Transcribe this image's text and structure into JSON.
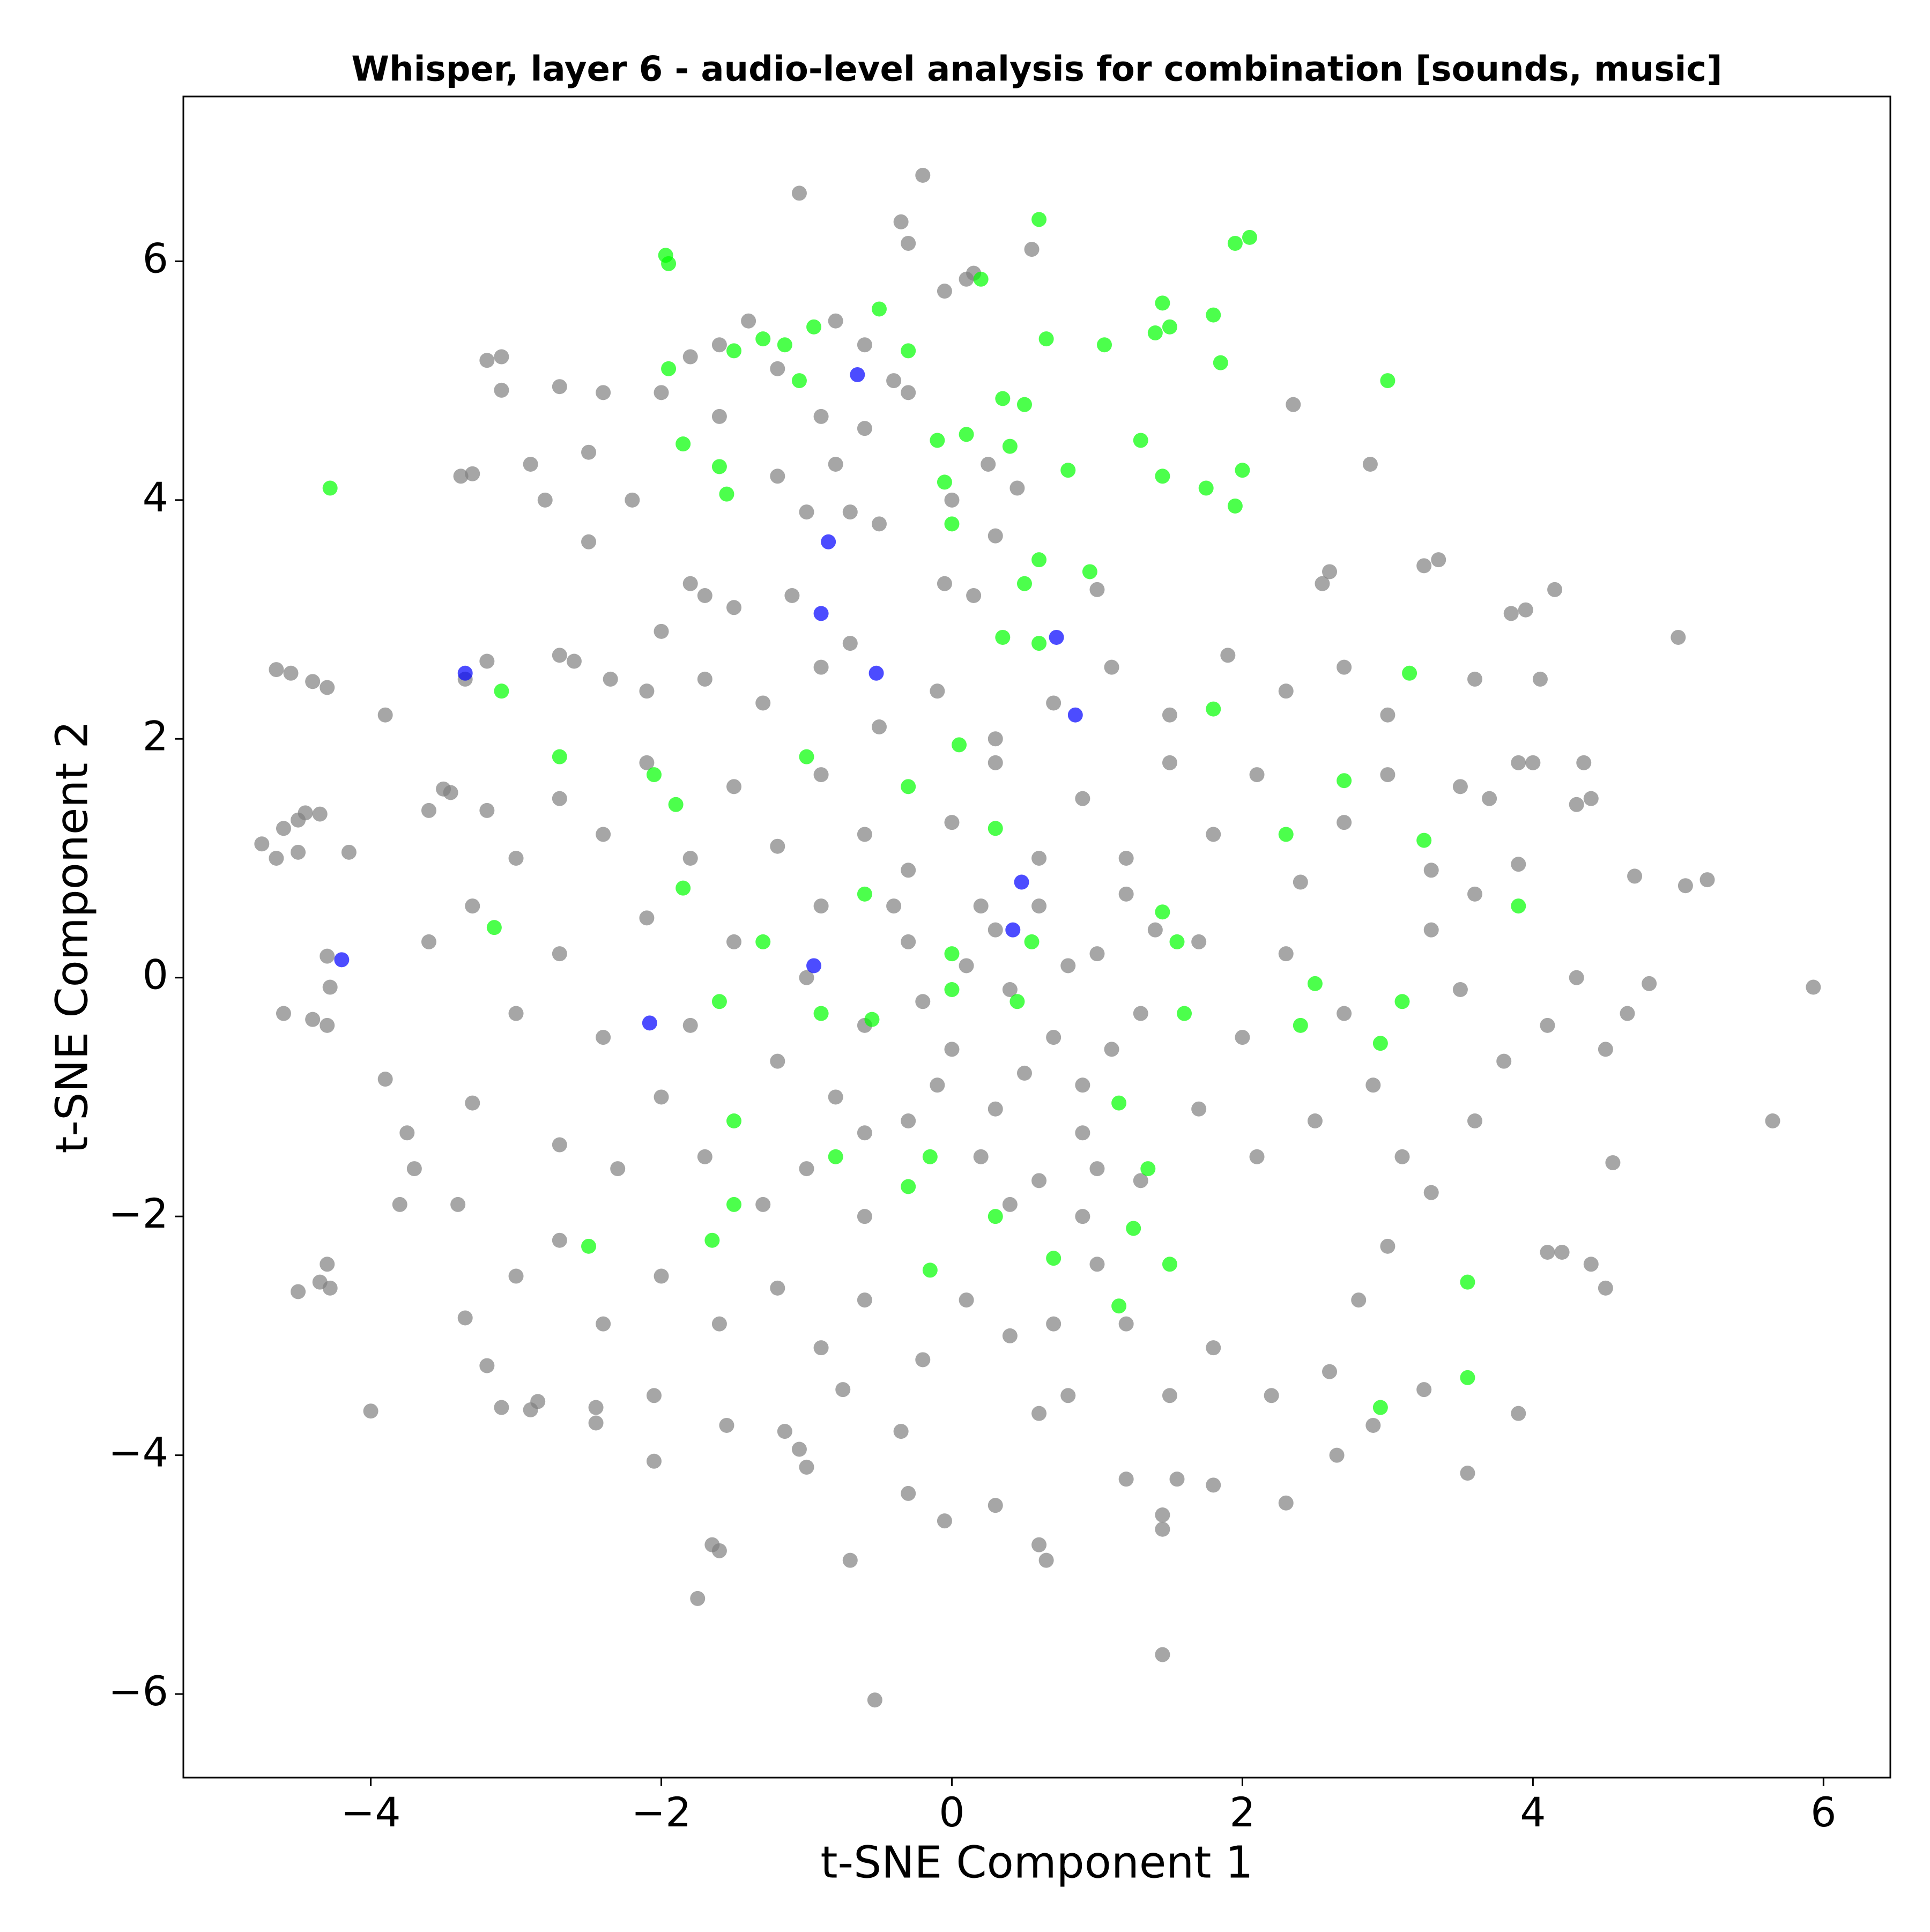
{
  "chart_data": {
    "type": "scatter",
    "title": "Whisper, layer 6 - audio-level analysis for combination [sounds, music]",
    "x_label": "t-SNE Component 1",
    "y_label": "t-SNE Component 2",
    "xlim": [
      -5.29,
      6.46
    ],
    "ylim": [
      -6.7,
      7.38
    ],
    "xticks": [
      {
        "value": -4,
        "label": "−4"
      },
      {
        "value": -2,
        "label": "−2"
      },
      0,
      2,
      4,
      6
    ],
    "yticks": [
      {
        "value": -6,
        "label": "−6"
      },
      {
        "value": -4,
        "label": "−4"
      },
      {
        "value": -2,
        "label": "−2"
      },
      0,
      2,
      4,
      6
    ],
    "alpha": 0.7,
    "series": [
      {
        "color": "#808080",
        "x": [
          -4.65,
          -4.55,
          -4.4,
          -4.3,
          -4.75,
          -4.6,
          -4.5,
          -4.45,
          -4.35,
          -4.65,
          -4.5,
          -4.15,
          -4.3,
          -4.28,
          -4.6,
          -4.4,
          -4.3,
          -4.0,
          -4.5,
          -4.35,
          -4.3,
          -4.28,
          -3.38,
          -3.3,
          -3.2,
          -3.1,
          -3.1,
          -1.05,
          -0.2,
          -0.35,
          -0.3,
          0.55,
          0.15,
          0.1,
          -0.05,
          5.93,
          5.65,
          5.0,
          5.2,
          5.05,
          4.7,
          4.8,
          2.88,
          2.35,
          1.45,
          -0.53,
          -1.75,
          -1.6,
          -1.65,
          -0.7,
          -0.05,
          0.6,
          0.65,
          1.45,
          1.45,
          4.15,
          3.85,
          3.95,
          4.05,
          3.6,
          4.3,
          4.4,
          4.35,
          3.9,
          2.6,
          2.55,
          3.25,
          3.35,
          1.0,
          0.15,
          -0.05,
          -1.7,
          -2.5,
          -2.7,
          -2.6,
          -2.35,
          -2.1,
          -3.2,
          -3.35,
          -3.9,
          -3.5,
          -3.45,
          -3.2,
          -3.6,
          -3.9,
          -3.75,
          -3.8,
          -3.7,
          -3.3,
          -3.4,
          -3.35,
          -3.2,
          -3.1,
          -2.9,
          -2.85,
          -2.45,
          -2.45,
          -2.05,
          -2.05,
          -1.55,
          -1.15,
          -1.05,
          -1.0,
          -0.75,
          -0.35,
          -0.3,
          0.3,
          0.6,
          0.8,
          1.2,
          1.55,
          1.8,
          2.3,
          2.65,
          2.9,
          3.25,
          3.55,
          3.9,
          4.4,
          4.5,
          4.1,
          4.2,
          4.55,
          4.5,
          4.3,
          4.65,
          4.1,
          4.0,
          3.7,
          3.5,
          3.9,
          3.6,
          3.3,
          3.5,
          3.8,
          3.6,
          3.3,
          3.0,
          2.8,
          2.6,
          2.2,
          1.8,
          1.5,
          1.2,
          1.0,
          0.7,
          0.4,
          0.1,
          -0.2,
          -0.6,
          -0.9,
          -1.2,
          -1.6,
          -2.0,
          -2.4,
          -2.7,
          -3.0,
          -2.7,
          -2.3,
          -2.0,
          -1.7,
          -1.3,
          -1.0,
          -0.6,
          -0.3,
          0.2,
          0.6,
          0.9,
          1.3,
          1.7,
          2.1,
          2.5,
          2.9,
          3.1,
          2.7,
          2.3,
          2.0,
          1.7,
          1.3,
          1.0,
          0.7,
          0.3,
          0.0,
          -0.3,
          -0.6,
          -0.9,
          -1.2,
          -1.5,
          -1.8,
          -2.1,
          -2.4,
          -2.7,
          -3.0,
          -3.3,
          -3.6,
          -3.0,
          -2.7,
          -2.4,
          -2.1,
          -1.8,
          -1.5,
          -1.2,
          -0.9,
          -0.6,
          -0.3,
          0.0,
          0.3,
          0.6,
          0.9,
          1.2,
          1.5,
          1.8,
          2.1,
          2.4,
          2.7,
          3.0,
          3.3,
          3.0,
          2.7,
          2.3,
          1.9,
          1.5,
          1.1,
          0.7,
          0.3,
          -0.1,
          -0.5,
          -0.9,
          -1.3,
          -1.7,
          -2.0,
          -1.5,
          -1.1,
          -0.7,
          -1.8,
          -2.9,
          -2.8,
          -2.5,
          -2.2,
          -2.0,
          -2.4,
          -2.7,
          -1.6,
          -1.8,
          -1.4,
          -1.2,
          -0.9,
          -0.8,
          -0.6,
          -0.5,
          -0.7,
          -0.3,
          -1.2,
          -1.0,
          -1.6,
          0.0,
          0.25,
          0.45,
          0.3,
          -0.6,
          -0.4,
          -0.8,
          0.1,
          -0.2,
          0.4,
          0.2,
          -0.4,
          0.8,
          0.5,
          -0.1,
          0.9,
          -0.8,
          1.1,
          -1.0,
          0.6,
          1.4,
          -0.6,
          0.3,
          0.9,
          0.4,
          1.0,
          1.2
        ],
        "y": [
          2.58,
          2.55,
          2.48,
          2.43,
          1.12,
          1.25,
          1.32,
          1.38,
          1.37,
          1.0,
          1.05,
          1.05,
          0.18,
          -0.08,
          -0.3,
          -0.35,
          -0.4,
          -3.63,
          -2.63,
          -2.55,
          -2.4,
          -2.6,
          4.2,
          4.22,
          5.17,
          5.2,
          4.92,
          6.57,
          6.72,
          6.33,
          6.15,
          6.1,
          5.9,
          5.85,
          5.75,
          -0.08,
          -1.2,
          2.85,
          0.82,
          0.77,
          0.85,
          -0.05,
          4.3,
          4.8,
          -5.67,
          -6.05,
          -5.2,
          -4.8,
          -4.75,
          -4.88,
          -4.55,
          -4.75,
          -4.88,
          -4.5,
          -4.62,
          3.25,
          3.05,
          3.08,
          2.5,
          2.5,
          1.45,
          1.5,
          1.8,
          1.8,
          3.4,
          3.3,
          3.45,
          3.5,
          3.25,
          3.2,
          3.3,
          3.2,
          3.65,
          2.7,
          2.65,
          2.5,
          2.4,
          2.65,
          2.5,
          2.2,
          1.58,
          1.55,
          1.4,
          1.4,
          -0.85,
          -1.3,
          -1.9,
          -1.6,
          -1.05,
          -1.9,
          -2.85,
          -3.25,
          -3.6,
          -3.62,
          -3.55,
          -3.6,
          -3.73,
          -4.05,
          -3.5,
          -3.75,
          -3.8,
          -3.95,
          -4.1,
          -3.45,
          -3.8,
          -4.32,
          -4.42,
          -3.65,
          -3.5,
          -4.2,
          -4.2,
          -4.25,
          -4.4,
          -4.0,
          -3.75,
          -3.45,
          -4.15,
          -3.65,
          -2.4,
          -2.6,
          -2.3,
          -2.3,
          -1.55,
          -0.6,
          0.0,
          -0.3,
          -0.4,
          1.8,
          1.5,
          1.6,
          0.95,
          0.7,
          0.4,
          -0.1,
          -0.7,
          -1.2,
          -1.8,
          -2.25,
          -2.7,
          -3.3,
          -3.5,
          -3.1,
          -3.5,
          -2.9,
          -2.4,
          -2.9,
          -3.0,
          -2.7,
          -3.2,
          -2.7,
          -3.1,
          -2.6,
          -2.9,
          -2.5,
          -2.9,
          -2.2,
          -2.5,
          -1.4,
          -1.6,
          -1.0,
          -1.5,
          -1.9,
          -1.6,
          -2.0,
          -1.2,
          -1.5,
          -1.7,
          -1.3,
          -1.7,
          -1.1,
          -1.5,
          -1.2,
          -0.9,
          -1.5,
          -0.3,
          0.2,
          -0.5,
          0.3,
          -0.3,
          0.2,
          -0.5,
          0.4,
          -0.6,
          0.3,
          -0.4,
          0.6,
          -0.7,
          0.3,
          -0.4,
          0.5,
          -0.5,
          0.2,
          -0.3,
          0.6,
          0.3,
          1.0,
          1.5,
          1.2,
          1.8,
          1.0,
          1.6,
          1.1,
          1.7,
          1.2,
          0.9,
          1.3,
          1.8,
          1.0,
          1.5,
          1.0,
          1.8,
          1.2,
          1.7,
          0.8,
          1.3,
          1.7,
          0.9,
          2.2,
          2.6,
          2.4,
          2.7,
          2.2,
          2.6,
          2.3,
          2.0,
          2.4,
          2.1,
          2.6,
          2.3,
          2.5,
          2.9,
          3.1,
          3.2,
          2.8,
          3.3,
          4.3,
          4.0,
          4.4,
          4.0,
          4.9,
          4.9,
          4.95,
          5.3,
          5.2,
          5.5,
          5.1,
          4.7,
          4.3,
          4.6,
          3.8,
          3.9,
          4.9,
          4.2,
          3.9,
          4.7,
          4.0,
          4.3,
          4.1,
          3.7,
          5.3,
          5.0,
          5.5,
          0.1,
          -0.2,
          -0.1,
          0.6,
          0.6,
          0.1,
          -0.8,
          -0.9,
          -0.9,
          -1.0,
          -0.6,
          0.0,
          0.6,
          0.4,
          -1.3,
          -1.1,
          -2.0,
          -1.9,
          -1.6,
          0.7
        ]
      },
      {
        "color": "#00ff00",
        "x": [
          -4.28,
          -1.97,
          -1.95,
          -1.95,
          -1.85,
          -1.6,
          -1.55,
          -1.5,
          -1.3,
          -1.15,
          -1.05,
          -0.95,
          -0.5,
          -0.3,
          -0.1,
          0.0,
          0.1,
          0.2,
          0.35,
          0.5,
          0.6,
          0.65,
          0.8,
          0.5,
          0.6,
          1.05,
          1.3,
          1.4,
          1.45,
          1.5,
          1.45,
          1.75,
          1.8,
          1.85,
          1.95,
          2.05,
          2.0,
          3.0,
          1.95,
          0.4,
          -0.05,
          0.95,
          -3.1,
          -2.7,
          -2.05,
          -1.9,
          -1.85,
          -3.15,
          -1.3,
          -0.9,
          -1.6,
          -0.6,
          -1.0,
          -0.8,
          -1.5,
          -2.5,
          -1.5,
          -1.65,
          -0.15,
          -0.15,
          0.3,
          0.7,
          1.15,
          1.25,
          1.5,
          1.35,
          1.15,
          1.6,
          0.55,
          0.0,
          0.0,
          0.05,
          -0.3,
          0.3,
          1.45,
          1.55,
          2.3,
          2.7,
          3.25,
          3.15,
          2.4,
          2.5,
          2.95,
          3.1,
          3.9,
          3.55,
          3.55,
          2.95,
          1.8,
          0.35,
          0.6,
          -0.55,
          0.45,
          -0.3
        ],
        "y": [
          4.1,
          6.05,
          5.98,
          5.1,
          4.47,
          4.28,
          4.05,
          5.25,
          5.35,
          5.3,
          5.0,
          5.45,
          5.6,
          5.25,
          4.5,
          3.8,
          4.55,
          5.85,
          4.85,
          4.8,
          6.35,
          5.35,
          4.25,
          3.3,
          3.5,
          5.3,
          4.5,
          5.4,
          5.65,
          5.45,
          4.2,
          4.1,
          5.55,
          5.15,
          6.15,
          6.2,
          4.25,
          5.0,
          3.95,
          4.45,
          4.15,
          3.4,
          2.4,
          1.85,
          1.7,
          1.45,
          0.75,
          0.42,
          0.3,
          -0.3,
          -0.2,
          0.7,
          1.85,
          -1.5,
          -1.2,
          -2.25,
          -1.9,
          -2.2,
          -2.45,
          -1.5,
          -2.0,
          -2.35,
          -2.75,
          -2.1,
          -2.4,
          -1.6,
          -1.05,
          -0.3,
          0.3,
          0.2,
          -0.1,
          1.95,
          1.6,
          1.25,
          0.55,
          0.3,
          1.2,
          1.65,
          1.15,
          2.55,
          -0.4,
          -0.05,
          -0.55,
          -0.2,
          0.6,
          -2.55,
          -3.35,
          -3.6,
          2.25,
          2.85,
          2.8,
          -0.35,
          -0.2,
          -1.75
        ]
      },
      {
        "color": "#0000ff",
        "x": [
          -0.65,
          -0.85,
          -0.9,
          -3.35,
          -0.52,
          0.72,
          0.85,
          -4.2,
          0.48,
          0.42,
          -0.95,
          -2.08
        ],
        "y": [
          5.05,
          3.65,
          3.05,
          2.55,
          2.55,
          2.85,
          2.2,
          0.15,
          0.8,
          0.4,
          0.1,
          -0.38
        ]
      }
    ]
  }
}
